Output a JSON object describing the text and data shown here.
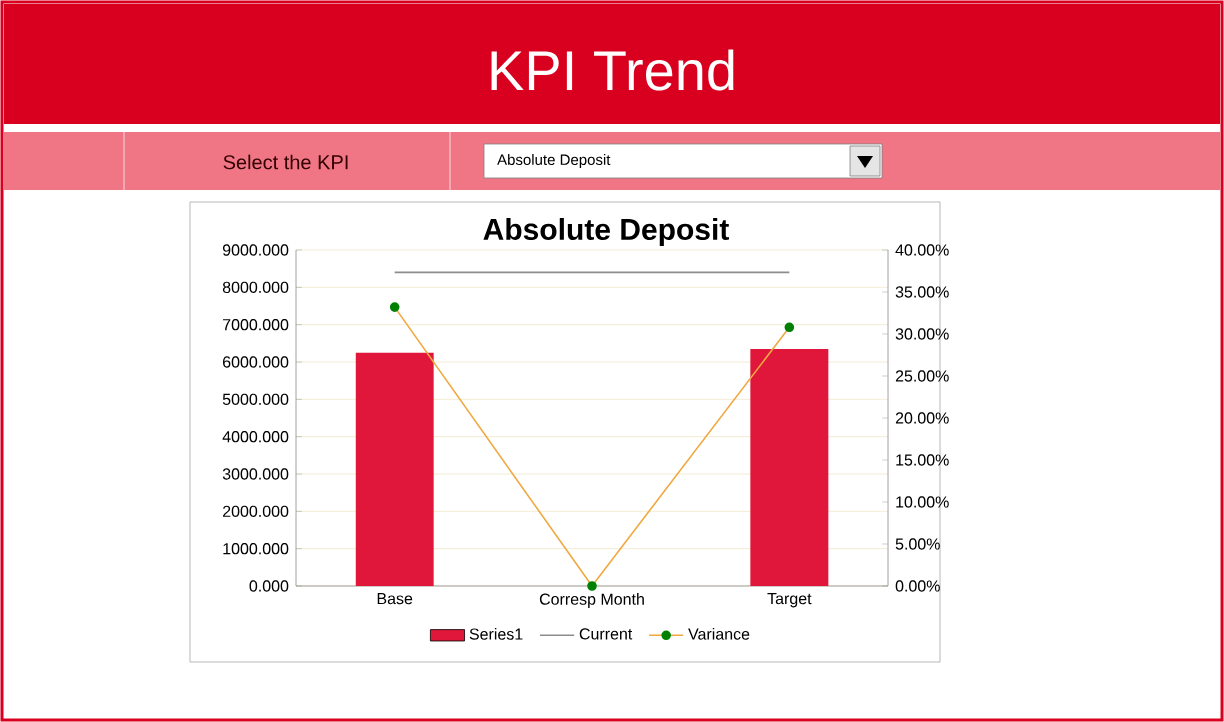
{
  "chart_data": {
    "type": "bar",
    "title": "KPI Trend",
    "subtitle": "Absolute Deposit",
    "annotations": [
      "Select the KPI",
      "Absolute Deposit"
    ],
    "categories": [
      "Base",
      "Corresp Month",
      "Target"
    ],
    "series": [
      {
        "name": "Series1",
        "color": "#e0173a",
        "values": [
          6250,
          null,
          6350
        ]
      },
      {
        "name": "Current",
        "type": "line",
        "color": "#8c8c8c",
        "marker": "none",
        "values": [
          8400,
          8400,
          8400
        ]
      },
      {
        "name": "Variance",
        "type": "line",
        "axis": "y2",
        "color": "#f0a840",
        "marker": "circle",
        "values": [
          33.2,
          0,
          30.8
        ]
      }
    ],
    "ylim": [
      0,
      9000
    ],
    "yticks": [
      {
        "value": 0,
        "label": "0.000"
      },
      {
        "value": 1000,
        "label": "1000.000"
      },
      {
        "value": 2000,
        "label": "2000.000"
      },
      {
        "value": 3000,
        "label": "3000.000"
      },
      {
        "value": 4000,
        "label": "4000.000"
      },
      {
        "value": 5000,
        "label": "5000.000"
      },
      {
        "value": 6000,
        "label": "6000.000"
      },
      {
        "value": 7000,
        "label": "7000.000"
      },
      {
        "value": 8000,
        "label": "8000.000"
      },
      {
        "value": 9000,
        "label": "9000.000"
      }
    ],
    "y2lim": [
      0,
      40
    ],
    "y2ticks": [
      {
        "value": 0,
        "label": "0.00%"
      },
      {
        "value": 5,
        "label": "5.00%"
      },
      {
        "value": 10,
        "label": "10.00%"
      },
      {
        "value": 15,
        "label": "15.00%"
      },
      {
        "value": 20,
        "label": "20.00%"
      },
      {
        "value": 25,
        "label": "25.00%"
      },
      {
        "value": 30,
        "label": "30.00%"
      },
      {
        "value": 35,
        "label": "35.00%"
      },
      {
        "value": 40,
        "label": "40.00%"
      }
    ],
    "grid": "y",
    "legend": "bottom"
  }
}
